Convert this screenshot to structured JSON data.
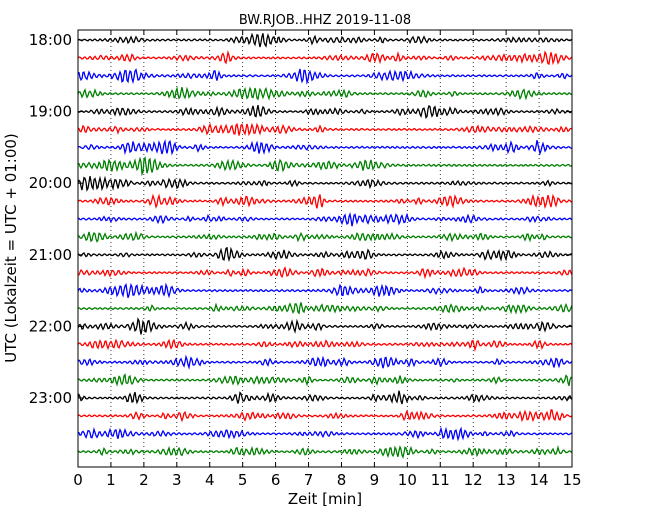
{
  "chart_data": {
    "type": "line",
    "title": "BW.RJOB..HHZ 2019-11-08",
    "xlabel": "Zeit  [min]",
    "ylabel": "UTC (Lokalzeit = UTC + 01:00)",
    "xlim": [
      0,
      15
    ],
    "x_ticks": [
      "0",
      "1",
      "2",
      "3",
      "4",
      "5",
      "6",
      "7",
      "8",
      "9",
      "10",
      "11",
      "12",
      "13",
      "14",
      "15"
    ],
    "y_tick_labels": [
      "18:00",
      "19:00",
      "20:00",
      "21:00",
      "22:00",
      "23:00"
    ],
    "trace_count": 24,
    "trace_interval_min": 15,
    "trace_start": "18:00",
    "trace_colors": [
      "#000000",
      "#ff0000",
      "#0000ff",
      "#008000"
    ],
    "grid": "vertical dotted at each minute",
    "legend": "none"
  }
}
